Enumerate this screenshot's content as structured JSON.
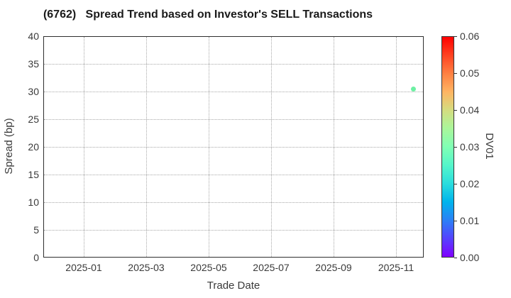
{
  "chart_data": {
    "type": "scatter",
    "title": "(6762)   Spread Trend based on Investor's SELL Transactions",
    "xlabel": "Trade Date",
    "ylabel": "Spread (bp)",
    "ylim": [
      0,
      40
    ],
    "yticks": [
      0,
      5,
      10,
      15,
      20,
      25,
      30,
      35,
      40
    ],
    "xticks": [
      "2025-01",
      "2025-03",
      "2025-05",
      "2025-07",
      "2025-09",
      "2025-11"
    ],
    "grid": true,
    "grid_style": "dotted",
    "legend_position": "none",
    "points": [
      {
        "trade_date": "2025-11-18",
        "spread_bp": 30.4,
        "dv01": 0.03,
        "color": "#6df0a3"
      }
    ],
    "colorbar": {
      "label": "DV01",
      "min": 0.0,
      "max": 0.06,
      "ticks": [
        "0.00",
        "0.01",
        "0.02",
        "0.03",
        "0.04",
        "0.05",
        "0.06"
      ],
      "colormap": "rainbow",
      "gradient_stops_bottom_to_top": [
        "#8000FF",
        "#5542FD",
        "#2B80F6",
        "#00B4EC",
        "#2BDDDD",
        "#55F6CA",
        "#80FFB4",
        "#AAF69B",
        "#D4DD80",
        "#FFB462",
        "#FF8042",
        "#FF4221",
        "#FF0000"
      ]
    },
    "colors": {
      "background": "#ffffff",
      "axis_border": "#2e2e2e",
      "grid": "#a8a8a8",
      "tick_text": "#3a3a3a",
      "title_text": "#1a1a1a"
    }
  }
}
